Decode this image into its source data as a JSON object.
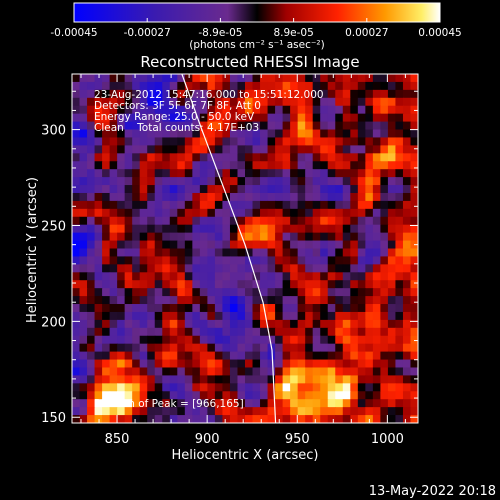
{
  "chart_data": {
    "type": "heatmap",
    "title": "Reconstructed RHESSI Image",
    "xlabel": "Heliocentric X (arcsec)",
    "ylabel": "Heliocentric Y (arcsec)",
    "xlim": [
      825,
      1017
    ],
    "ylim": [
      147,
      329
    ],
    "xticks": [
      850,
      900,
      950,
      1000
    ],
    "yticks": [
      150,
      200,
      250,
      300
    ],
    "colorbar": {
      "min": -0.00045,
      "max": 0.00045,
      "tick_labels": [
        "-0.00045",
        "-0.00027",
        "-8.9e-05",
        "8.9e-05",
        "0.00027",
        "0.00045"
      ],
      "units": "(photons cm⁻² s⁻¹ asec⁻²)",
      "colormap": "blue-purple-red-yellow-white"
    },
    "info_lines": [
      "23-Aug-2012 15:47:16.000 to 15:51:12.000",
      "Detectors: 3F 5F 6F 7F 8F, Att 0",
      "Energy Range: 25.0 - 50.0 keV",
      "Clean    Total counts: 4.17E+03"
    ],
    "peak_text": "Position of Peak = [966,165]",
    "limb_curve": [
      [
        886,
        329
      ],
      [
        897,
        300
      ],
      [
        909,
        270
      ],
      [
        921,
        240
      ],
      [
        931,
        210
      ],
      [
        936,
        185
      ],
      [
        938,
        147
      ]
    ],
    "grid_shape": [
      46,
      44
    ],
    "grid": false
  },
  "footer": {
    "timestamp": "13-May-2022 20:18"
  }
}
